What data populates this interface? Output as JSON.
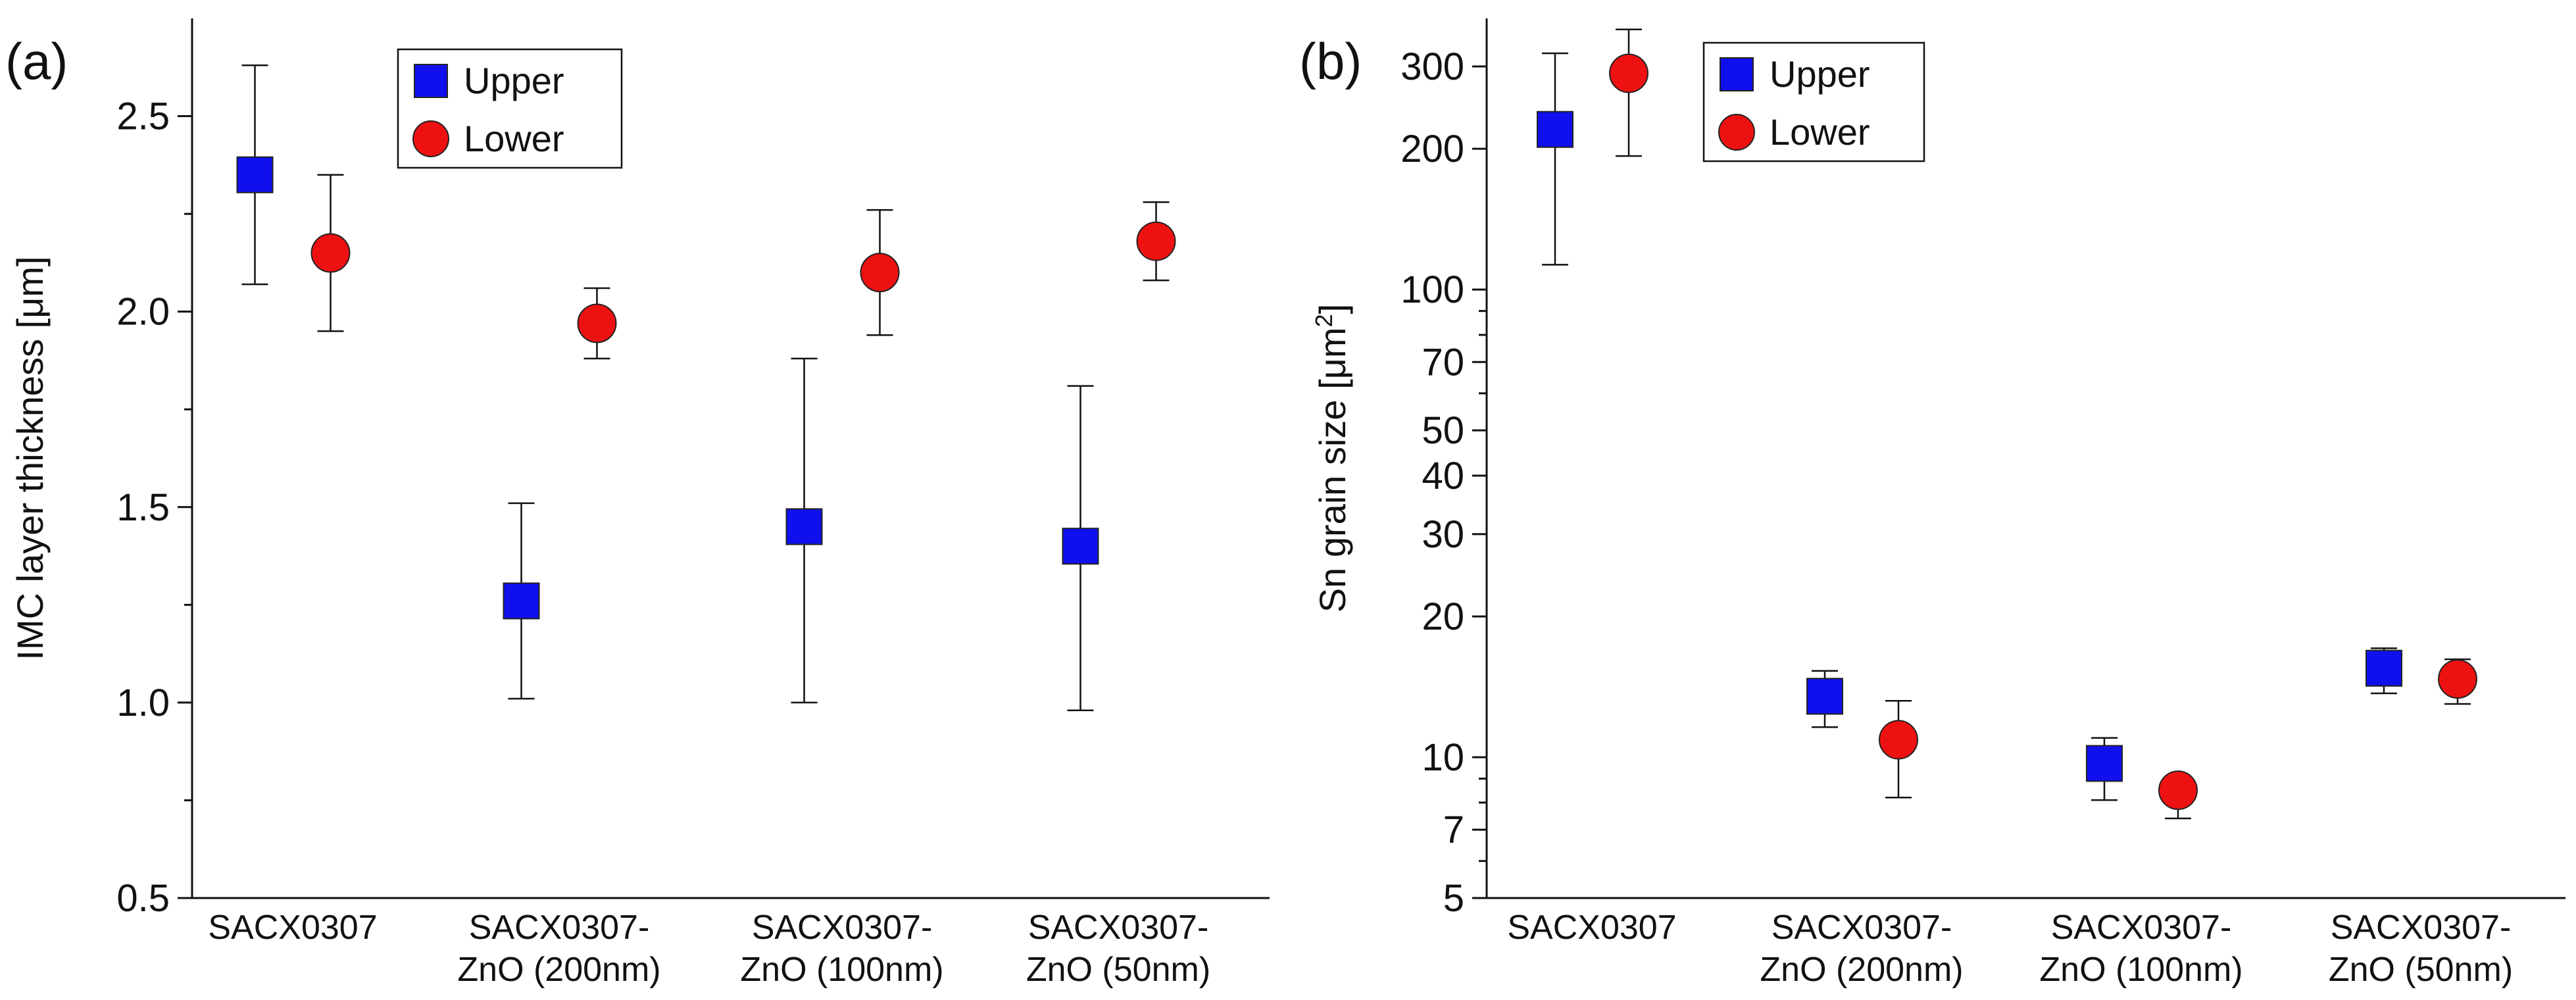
{
  "chart_data": [
    {
      "panel_label": "(a)",
      "type": "scatter",
      "title": "",
      "xlabel": "",
      "ylabel": "IMC layer thickness [μm]",
      "yscale": "linear",
      "ylim": [
        0.5,
        2.75
      ],
      "yticks": [
        0.5,
        1.0,
        1.5,
        2.0,
        2.5
      ],
      "ytick_labels": [
        "0.5",
        "1.0",
        "1.5",
        "2.0",
        "2.5"
      ],
      "categories": [
        [
          "SACX0307"
        ],
        [
          "SACX0307-",
          "ZnO (200nm)"
        ],
        [
          "SACX0307-",
          "ZnO (100nm)"
        ],
        [
          "SACX0307-",
          "ZnO (50nm)"
        ]
      ],
      "legend": {
        "placement": "top-left",
        "entries": [
          "Upper",
          "Lower"
        ]
      },
      "series": [
        {
          "name": "Upper",
          "marker": "square",
          "color": "#1010ee",
          "values": [
            2.35,
            1.26,
            1.45,
            1.4
          ],
          "err_low": [
            2.07,
            1.01,
            1.0,
            0.98
          ],
          "err_high": [
            2.63,
            1.51,
            1.88,
            1.81
          ]
        },
        {
          "name": "Lower",
          "marker": "circle",
          "color": "#ee1111",
          "values": [
            2.15,
            1.97,
            2.1,
            2.18
          ],
          "err_low": [
            1.95,
            1.88,
            1.94,
            2.08
          ],
          "err_high": [
            2.35,
            2.06,
            2.26,
            2.28
          ]
        }
      ]
    },
    {
      "panel_label": "(b)",
      "type": "scatter",
      "title": "",
      "xlabel": "",
      "ylabel": "Sn grain size [μm",
      "ylabel_sup": "2",
      "ylabel_end": "]",
      "yscale": "log",
      "ylim": [
        5,
        380
      ],
      "yticks": [
        5,
        7,
        10,
        20,
        30,
        40,
        50,
        70,
        100,
        200,
        300
      ],
      "ytick_labels": [
        "5",
        "7",
        "10",
        "20",
        "30",
        "40",
        "50",
        "70",
        "100",
        "200",
        "300"
      ],
      "yminor": [
        6,
        8,
        9,
        60,
        80,
        90
      ],
      "categories": [
        [
          "SACX0307"
        ],
        [
          "SACX0307-",
          "ZnO (200nm)"
        ],
        [
          "SACX0307-",
          "ZnO (100nm)"
        ],
        [
          "SACX0307-",
          "ZnO (50nm)"
        ]
      ],
      "legend": {
        "placement": "top-left",
        "entries": [
          "Upper",
          "Lower"
        ]
      },
      "series": [
        {
          "name": "Upper",
          "marker": "square",
          "color": "#1010ee",
          "values": [
            220,
            13.5,
            9.7,
            15.5
          ],
          "err_low": [
            113,
            11.6,
            8.1,
            13.7
          ],
          "err_high": [
            320,
            15.3,
            11.0,
            17.1
          ]
        },
        {
          "name": "Lower",
          "marker": "circle",
          "color": "#ee1111",
          "values": [
            290,
            10.9,
            8.5,
            14.7
          ],
          "err_low": [
            193,
            8.2,
            7.4,
            13.0
          ],
          "err_high": [
            360,
            13.2,
            9.1,
            16.2
          ]
        }
      ]
    }
  ]
}
